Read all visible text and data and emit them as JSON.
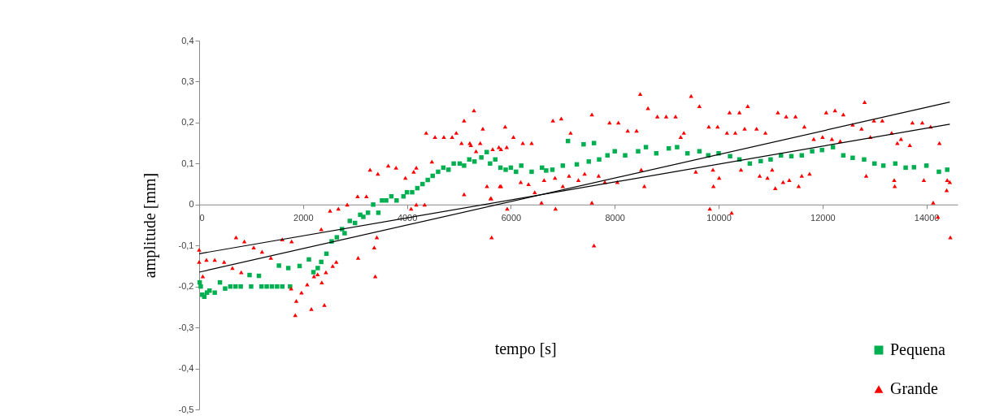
{
  "chart_data": {
    "type": "scatter",
    "xlabel": "tempo [s]",
    "ylabel": "amplitude [mm]",
    "xlim": [
      0,
      14600
    ],
    "ylim": [
      -0.5,
      0.4
    ],
    "xticks": [
      0,
      2000,
      4000,
      6000,
      8000,
      10000,
      12000,
      14000
    ],
    "yticks": [
      {
        "value": -0.5,
        "label": "-0,5"
      },
      {
        "value": -0.4,
        "label": "-0,4"
      },
      {
        "value": -0.3,
        "label": "-0,3"
      },
      {
        "value": -0.2,
        "label": "-0,2"
      },
      {
        "value": -0.1,
        "label": "-0,1"
      },
      {
        "value": 0,
        "label": "0"
      },
      {
        "value": 0.1,
        "label": "0,1"
      },
      {
        "value": 0.2,
        "label": "0,2"
      },
      {
        "value": 0.3,
        "label": "0,3"
      },
      {
        "value": 0.4,
        "label": "0,4"
      }
    ],
    "grid": false,
    "legend": "bottom right",
    "series": [
      {
        "name": "Pequena",
        "marker": "square",
        "color": "#00b050",
        "x": [
          10,
          30,
          60,
          100,
          150,
          200,
          300,
          400,
          500,
          600,
          700,
          800,
          970,
          1000,
          1150,
          1200,
          1300,
          1400,
          1500,
          1536,
          1600,
          1716,
          1750,
          1933,
          2113,
          2200,
          2283,
          2350,
          2450,
          2550,
          2650,
          2750,
          2800,
          2900,
          3000,
          3100,
          3160,
          3250,
          3350,
          3450,
          3520,
          3600,
          3700,
          3800,
          3933,
          4000,
          4100,
          4200,
          4300,
          4400,
          4495,
          4600,
          4700,
          4800,
          4900,
          5016,
          5100,
          5200,
          5300,
          5432,
          5536,
          5600,
          5700,
          5800,
          5900,
          6000,
          6100,
          6200,
          6400,
          6600,
          6680,
          6800,
          7000,
          7100,
          7270,
          7400,
          7500,
          7600,
          7700,
          7860,
          8000,
          8200,
          8450,
          8600,
          8800,
          9040,
          9200,
          9400,
          9630,
          9800,
          10000,
          10220,
          10400,
          10600,
          10810,
          11000,
          11200,
          11400,
          11600,
          11800,
          11990,
          12200,
          12400,
          12580,
          12800,
          13000,
          13170,
          13400,
          13600,
          13760,
          14000,
          14240,
          14400
        ],
        "values": [
          -0.19,
          -0.2,
          -0.22,
          -0.225,
          -0.215,
          -0.21,
          -0.215,
          -0.19,
          -0.205,
          -0.2,
          -0.2,
          -0.2,
          -0.172,
          -0.2,
          -0.174,
          -0.2,
          -0.2,
          -0.2,
          -0.2,
          -0.149,
          -0.2,
          -0.155,
          -0.2,
          -0.15,
          -0.134,
          -0.165,
          -0.155,
          -0.14,
          -0.12,
          -0.09,
          -0.08,
          -0.06,
          -0.07,
          -0.04,
          -0.045,
          -0.025,
          -0.03,
          -0.02,
          0.0,
          -0.02,
          0.01,
          0.01,
          0.02,
          0.01,
          0.02,
          0.03,
          0.03,
          0.04,
          0.05,
          0.06,
          0.07,
          0.08,
          0.09,
          0.085,
          0.1,
          0.1,
          0.095,
          0.11,
          0.105,
          0.115,
          0.128,
          0.1,
          0.11,
          0.09,
          0.085,
          0.09,
          0.08,
          0.095,
          0.08,
          0.09,
          0.083,
          0.085,
          0.095,
          0.155,
          0.098,
          0.147,
          0.105,
          0.15,
          0.11,
          0.12,
          0.13,
          0.12,
          0.13,
          0.14,
          0.125,
          0.137,
          0.14,
          0.125,
          0.13,
          0.12,
          0.125,
          0.118,
          0.11,
          0.1,
          0.106,
          0.11,
          0.12,
          0.118,
          0.12,
          0.13,
          0.133,
          0.14,
          0.12,
          0.114,
          0.11,
          0.1,
          0.095,
          0.1,
          0.09,
          0.091,
          0.095,
          0.08,
          0.085
        ]
      },
      {
        "name": "Grande",
        "marker": "triangle",
        "color": "#ff0000",
        "x": [
          0,
          0,
          70,
          140,
          300,
          480,
          640,
          710,
          810,
          870,
          1050,
          1210,
          1380,
          1600,
          1780,
          1770,
          1850,
          1870,
          1970,
          2080,
          2160,
          2210,
          2280,
          2360,
          2410,
          2440,
          2350,
          2520,
          2570,
          2680,
          2850,
          2640,
          3060,
          3370,
          3420,
          3390,
          3050,
          3220,
          3290,
          3440,
          3640,
          3790,
          3970,
          4130,
          4180,
          4080,
          4180,
          4340,
          4370,
          4480,
          4540,
          4710,
          4870,
          4950,
          5050,
          5100,
          5100,
          5210,
          5230,
          5290,
          5460,
          5410,
          5330,
          5630,
          5540,
          5610,
          5770,
          5790,
          5650,
          5890,
          5810,
          5920,
          6050,
          6230,
          6400,
          5810,
          5620,
          5930,
          6190,
          6340,
          6460,
          6590,
          6640,
          6810,
          6970,
          6850,
          6860,
          7000,
          7150,
          7120,
          7300,
          7420,
          7560,
          7560,
          7600,
          7690,
          7810,
          7900,
          8070,
          8050,
          8250,
          8420,
          8490,
          8510,
          8570,
          8640,
          8820,
          8990,
          9170,
          9330,
          9270,
          9470,
          9560,
          9630,
          9810,
          9830,
          9890,
          9900,
          9980,
          10010,
          10160,
          10210,
          10250,
          10320,
          10400,
          10430,
          10500,
          10560,
          10730,
          10790,
          10900,
          10940,
          11030,
          11090,
          11140,
          11240,
          11300,
          11360,
          11480,
          11540,
          11600,
          11650,
          11750,
          11830,
          12000,
          12070,
          12180,
          12240,
          12340,
          12400,
          12580,
          12750,
          12810,
          12840,
          12920,
          12990,
          13150,
          13330,
          13380,
          13390,
          13440,
          13510,
          13680,
          13730,
          13920,
          13950,
          14080,
          14130,
          14220,
          14250,
          14400,
          14390,
          14450,
          14460
        ],
        "values": [
          -0.11,
          -0.14,
          -0.175,
          -0.135,
          -0.135,
          -0.14,
          -0.155,
          -0.08,
          -0.165,
          -0.09,
          -0.105,
          -0.115,
          -0.13,
          -0.085,
          -0.09,
          -0.205,
          -0.27,
          -0.235,
          -0.215,
          -0.195,
          -0.255,
          -0.175,
          -0.17,
          -0.19,
          -0.245,
          -0.165,
          -0.06,
          -0.015,
          -0.15,
          -0.01,
          0.0,
          -0.14,
          -0.13,
          -0.105,
          -0.08,
          -0.175,
          0.02,
          0.02,
          0.085,
          0.075,
          0.095,
          0.09,
          0.065,
          0.08,
          0.09,
          -0.01,
          0.0,
          0.0,
          0.175,
          0.105,
          0.165,
          0.165,
          0.165,
          0.175,
          0.15,
          0.205,
          0.025,
          0.15,
          0.145,
          0.23,
          0.185,
          0.15,
          0.13,
          -0.08,
          0.045,
          0.015,
          0.14,
          0.045,
          0.135,
          0.19,
          0.135,
          0.14,
          0.165,
          0.15,
          0.15,
          0.045,
          0.015,
          -0.01,
          0.055,
          0.05,
          0.03,
          0.005,
          0.06,
          0.205,
          0.21,
          0.065,
          -0.01,
          0.045,
          0.175,
          0.07,
          0.06,
          0.075,
          0.22,
          0.005,
          -0.1,
          0.07,
          0.055,
          0.2,
          0.2,
          0.055,
          0.18,
          0.18,
          0.27,
          0.085,
          0.045,
          0.235,
          0.215,
          0.215,
          0.215,
          0.175,
          0.165,
          0.265,
          0.08,
          0.24,
          0.19,
          -0.01,
          0.085,
          0.045,
          0.19,
          0.065,
          0.175,
          0.225,
          -0.02,
          0.175,
          0.225,
          0.085,
          0.185,
          0.24,
          0.185,
          0.07,
          0.175,
          0.065,
          0.085,
          0.04,
          0.225,
          0.055,
          0.215,
          0.06,
          0.215,
          0.045,
          0.07,
          0.19,
          0.075,
          0.16,
          0.165,
          0.225,
          0.16,
          0.23,
          0.155,
          0.22,
          0.195,
          0.185,
          0.25,
          0.07,
          0.165,
          0.205,
          0.205,
          0.175,
          0.06,
          0.045,
          0.15,
          0.16,
          0.145,
          0.2,
          0.2,
          0.06,
          0.19,
          0.005,
          -0.03,
          0.15,
          0.06,
          0.035,
          0.055,
          -0.08
        ]
      },
      {
        "type": "line",
        "color": "#000000",
        "x": [
          0,
          14450
        ],
        "values": [
          -0.12,
          0.196
        ]
      },
      {
        "type": "line",
        "color": "#000000",
        "x": [
          0,
          14450
        ],
        "values": [
          -0.165,
          0.25
        ]
      }
    ]
  }
}
